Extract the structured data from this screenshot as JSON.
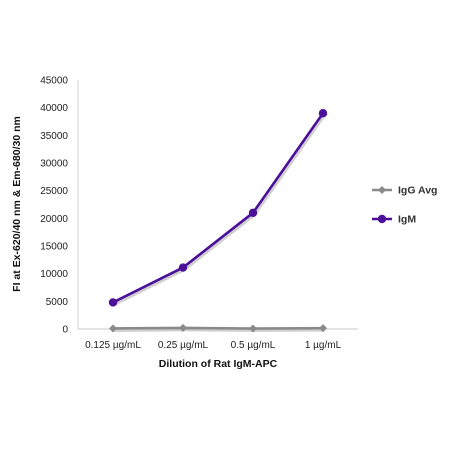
{
  "chart_data": {
    "type": "line",
    "categories": [
      "0.125 µg/mL",
      "0.25 µg/mL",
      "0.5 µg/mL",
      "1 µg/mL"
    ],
    "series": [
      {
        "name": "IgG Avg",
        "values": [
          100,
          200,
          80,
          150
        ],
        "color": "#8a8a8a",
        "marker": "diamond"
      },
      {
        "name": "IgM",
        "values": [
          4800,
          11100,
          21000,
          39000
        ],
        "color": "#4b0f9a",
        "marker": "circle"
      }
    ],
    "xlabel": "Dilution of Rat IgM-APC",
    "ylabel": "FI at Ex-620/40 nm & Em-680/30 nm",
    "yticks": [
      0,
      5000,
      10000,
      15000,
      20000,
      25000,
      30000,
      35000,
      40000,
      45000
    ],
    "ylim": [
      0,
      45000
    ],
    "grid": false,
    "legend_position": "right"
  }
}
